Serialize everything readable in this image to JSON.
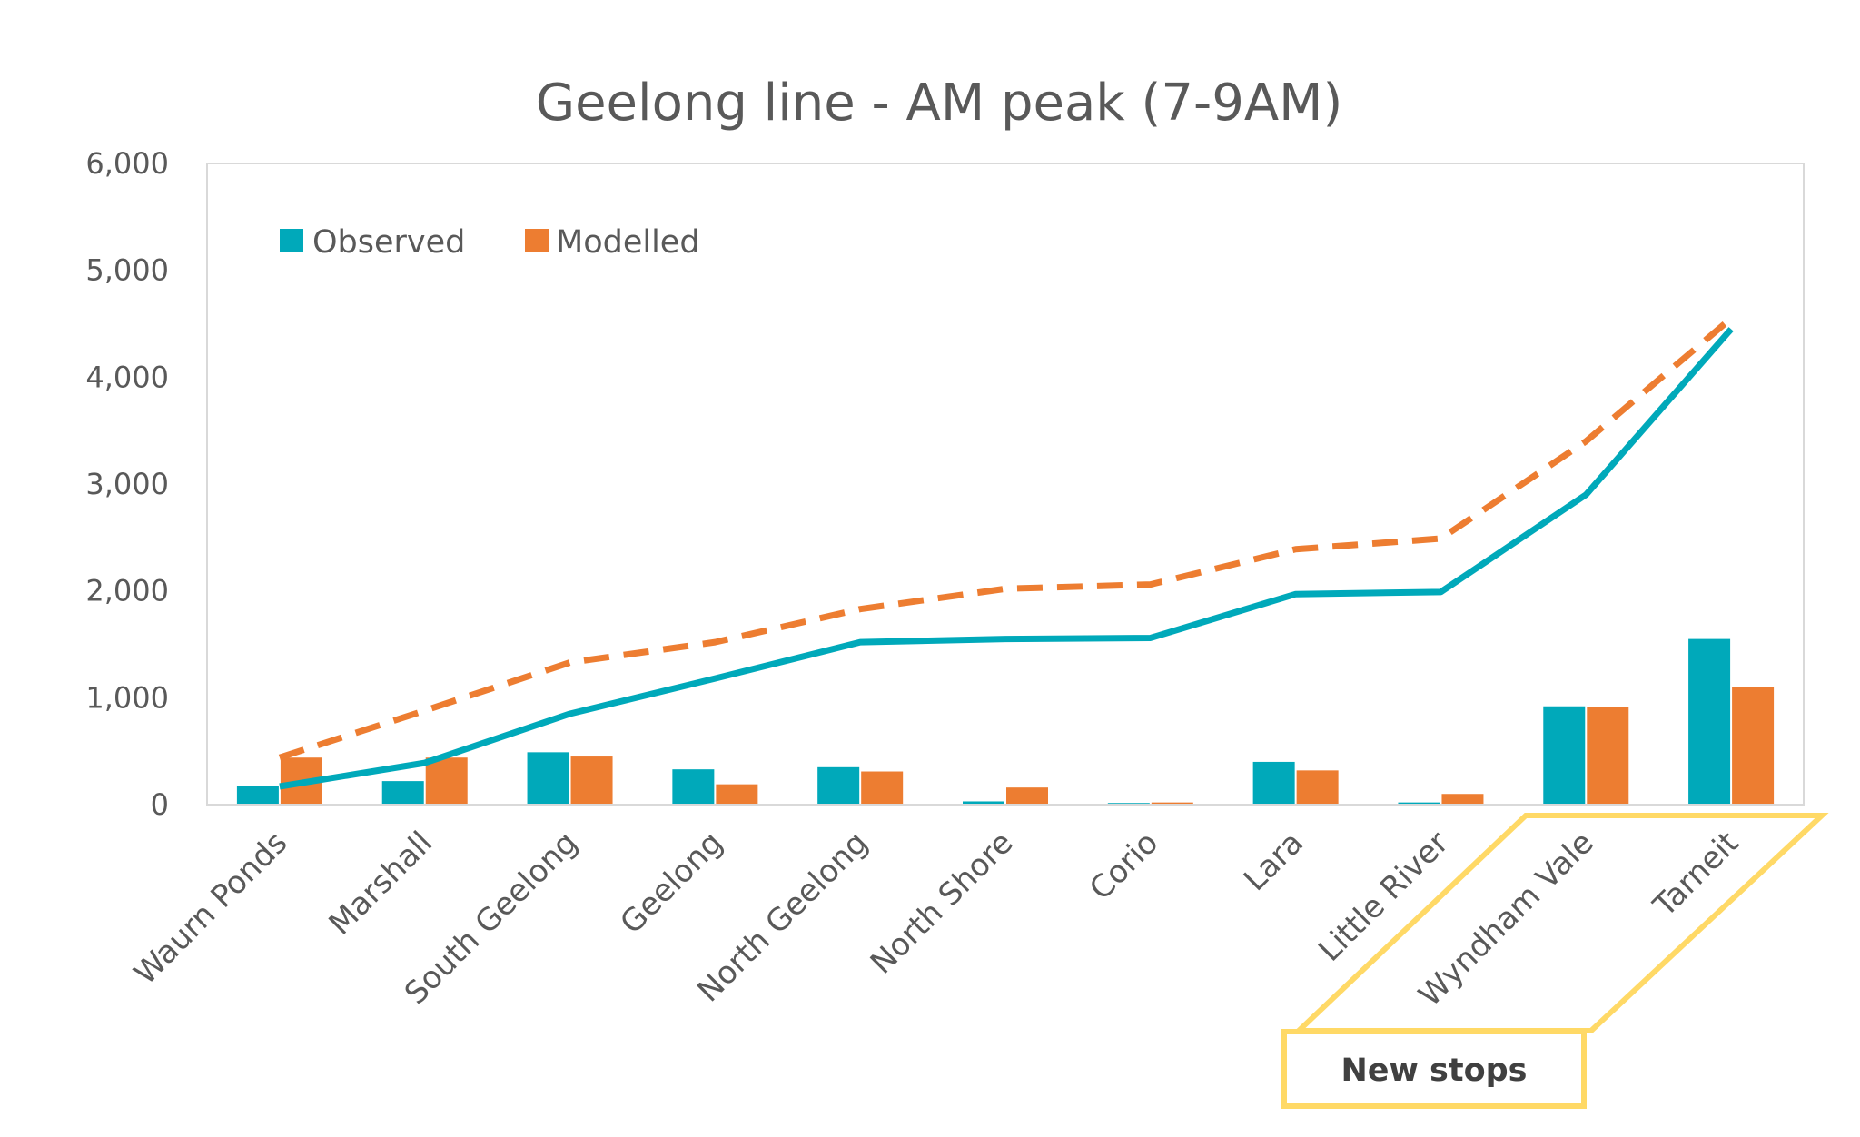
{
  "chart_data": {
    "type": "bar",
    "title": "Geelong line - AM peak (7-9AM)",
    "xlabel": "",
    "ylabel": "",
    "ylim": [
      0,
      6000
    ],
    "yticks": [
      0,
      1000,
      2000,
      3000,
      4000,
      5000,
      6000
    ],
    "ytick_labels": [
      "0",
      "1,000",
      "2,000",
      "3,000",
      "4,000",
      "5,000",
      "6,000"
    ],
    "grid": false,
    "legend_position": "top-left",
    "categories": [
      "Waurn Ponds",
      "Marshall",
      "South Geelong",
      "Geelong",
      "North Geelong",
      "North Shore",
      "Corio",
      "Lara",
      "Little River",
      "Wyndham Vale",
      "Tarneit"
    ],
    "series": [
      {
        "name": "Observed",
        "kind": "bar",
        "color": "#00A9BA",
        "values": [
          170,
          220,
          490,
          330,
          350,
          30,
          15,
          400,
          20,
          920,
          1550
        ]
      },
      {
        "name": "Modelled",
        "kind": "bar",
        "color": "#ED7D31",
        "values": [
          440,
          440,
          450,
          190,
          310,
          160,
          20,
          320,
          100,
          910,
          1100
        ]
      },
      {
        "kind": "line",
        "style": "solid",
        "color": "#00A9BA",
        "values": [
          170,
          390,
          850,
          1180,
          1520,
          1550,
          1560,
          1970,
          1990,
          2900,
          4450
        ]
      },
      {
        "kind": "line",
        "style": "dashed",
        "color": "#ED7D31",
        "values": [
          440,
          880,
          1330,
          1520,
          1830,
          2020,
          2060,
          2390,
          2490,
          3400,
          4550
        ]
      }
    ],
    "annotation": {
      "text": "New stops",
      "color": "#FFD966",
      "categories": [
        "Wyndham Vale",
        "Tarneit"
      ]
    }
  }
}
